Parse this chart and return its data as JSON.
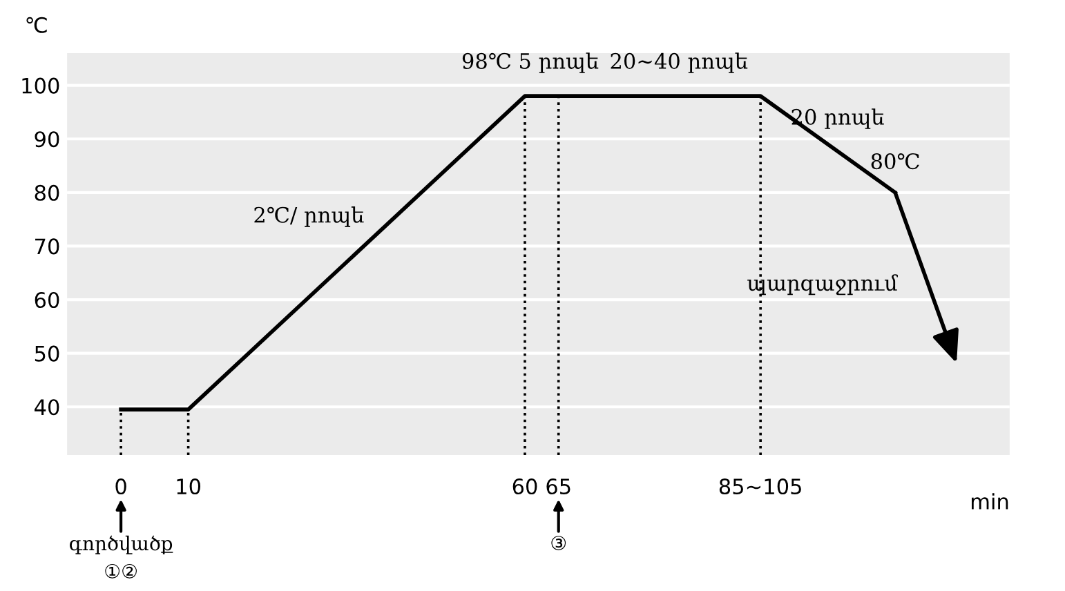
{
  "chart_data": {
    "type": "line",
    "ylabel": "℃",
    "xlabel": "min",
    "series": [
      {
        "color": "#000000",
        "x": [
          0,
          10,
          60,
          65,
          95,
          115
        ],
        "values": [
          39.5,
          39.5,
          98,
          98,
          98,
          80
        ]
      }
    ],
    "xlim": [
      -8,
      132
    ],
    "ylim": [
      31,
      106
    ],
    "xticks": [
      0,
      10,
      60,
      65,
      {
        "value": 95,
        "label": "85~105"
      }
    ],
    "yticks": [
      40,
      50,
      60,
      70,
      80,
      90,
      100
    ],
    "grid": "y",
    "legend": false,
    "marker": "none",
    "line_style": "solid",
    "ref_lines": [
      {
        "axis": "x",
        "value": 0,
        "line_style": "dotted",
        "color": "#000000"
      },
      {
        "axis": "x",
        "value": 10,
        "line_style": "dotted",
        "color": "#000000"
      },
      {
        "axis": "x",
        "value": 60,
        "line_style": "dotted",
        "color": "#000000"
      },
      {
        "axis": "x",
        "value": 65,
        "line_style": "dotted",
        "color": "#000000"
      },
      {
        "axis": "x",
        "value": 95,
        "line_style": "dotted",
        "color": "#000000"
      }
    ],
    "annotations": [
      {
        "text": "98℃",
        "x": 60,
        "y": 98
      },
      {
        "text": "5 րոպե",
        "x": 65,
        "y": 98
      },
      {
        "text": "20~40 րոպե",
        "x": 80,
        "y": 98
      },
      {
        "text": "20 րոպե",
        "x": 105,
        "y": 89
      },
      {
        "text": "80℃",
        "x": 115,
        "y": 80
      },
      {
        "text": "2℃/ րոպե",
        "x": 35,
        "y": 70
      },
      "պարզաջրում",
      "գործվածք\n①②",
      "③"
    ]
  }
}
